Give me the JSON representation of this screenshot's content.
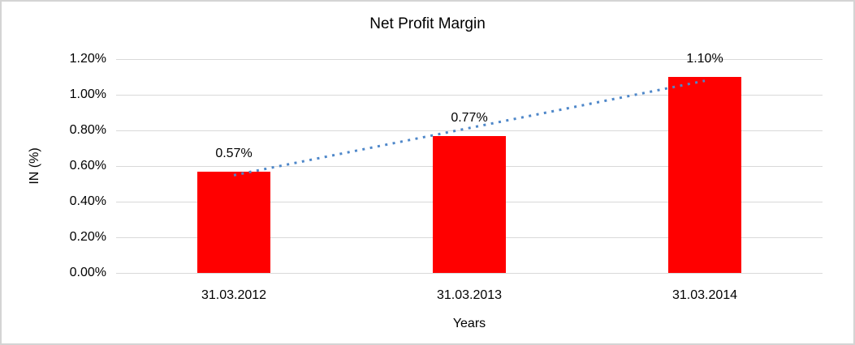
{
  "chart": {
    "title": "Net Profit Margin",
    "y_axis_title": "IN (%)",
    "x_axis_title": "Years"
  },
  "chart_data": {
    "type": "bar",
    "title": "Net Profit Margin",
    "xlabel": "Years",
    "ylabel": "IN (%)",
    "categories": [
      "31.03.2012",
      "31.03.2013",
      "31.03.2014"
    ],
    "series": [
      {
        "name": "Net Profit Margin",
        "values": [
          0.57,
          0.77,
          1.1
        ]
      }
    ],
    "data_labels": [
      "0.57%",
      "0.77%",
      "1.10%"
    ],
    "ylim": [
      0,
      1.2
    ],
    "ytick_interval": 0.2,
    "ytick_labels": [
      "0.00%",
      "0.20%",
      "0.40%",
      "0.60%",
      "0.80%",
      "1.00%",
      "1.20%"
    ],
    "grid": true,
    "legend": "none",
    "trendline": {
      "type": "linear",
      "style": "dotted"
    }
  },
  "colors": {
    "bar": "#FF0000",
    "trendline": "#4E87C9",
    "gridline": "#D9D9D9",
    "axis_line": "#D9D9D9",
    "frame_border": "#D4D4D4",
    "text": "#000000",
    "background": "#FFFFFF"
  }
}
